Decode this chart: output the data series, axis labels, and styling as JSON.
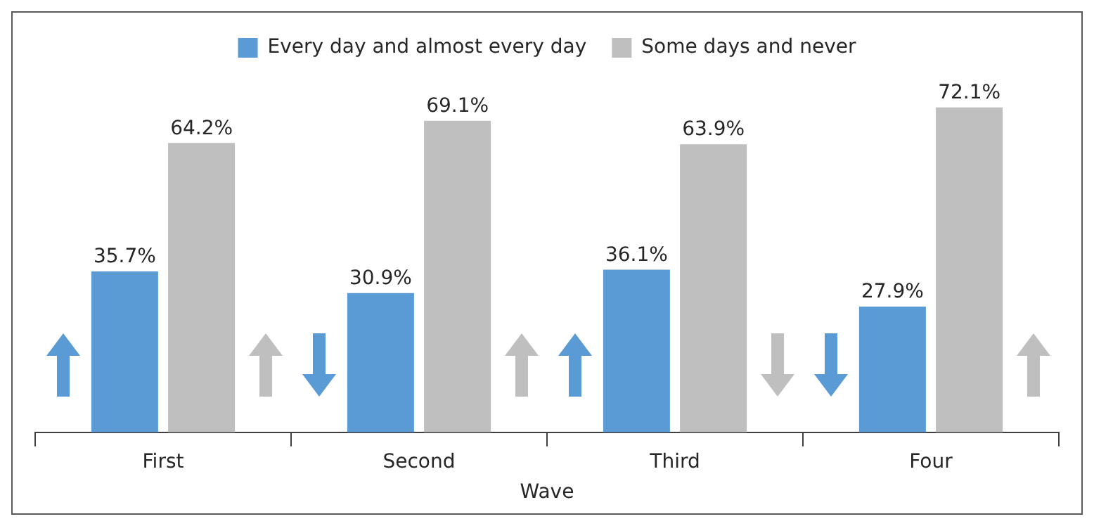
{
  "chart_data": {
    "type": "bar",
    "xlabel": "Wave",
    "categories": [
      "First",
      "Second",
      "Third",
      "Four"
    ],
    "series": [
      {
        "name": "Every day and almost every day",
        "color": "#5b9bd5",
        "values": [
          35.7,
          30.9,
          36.1,
          27.9
        ],
        "value_labels": [
          "35.7%",
          "30.9%",
          "36.1%",
          "27.9%"
        ]
      },
      {
        "name": "Some days and never",
        "color": "#bfbfbf",
        "values": [
          64.2,
          69.1,
          63.9,
          72.1
        ],
        "value_labels": [
          "64.2%",
          "69.1%",
          "63.9%",
          "72.1%"
        ]
      }
    ],
    "legend": "top",
    "grid": false,
    "tick_labels": "x"
  }
}
